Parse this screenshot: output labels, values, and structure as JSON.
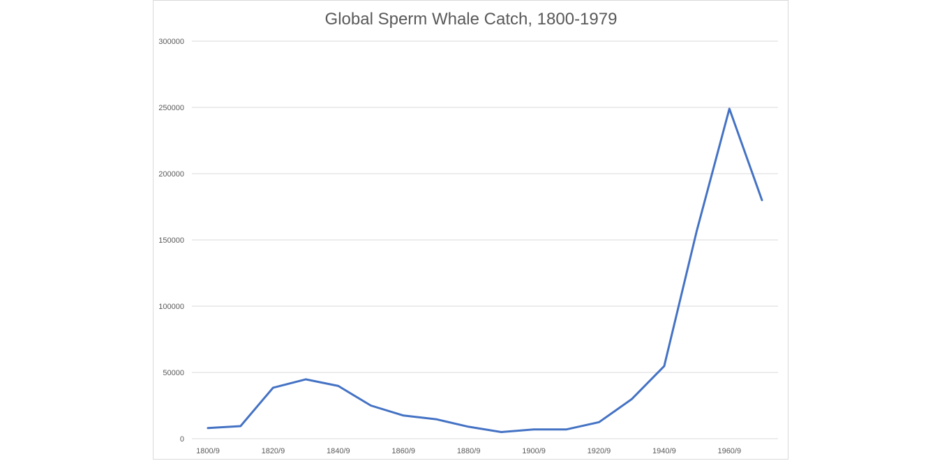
{
  "chart_data": {
    "type": "line",
    "title": "Global Sperm Whale Catch, 1800-1979",
    "xlabel": "",
    "ylabel": "",
    "x": [
      "1800/9",
      "1810/9",
      "1820/9",
      "1830/9",
      "1840/9",
      "1850/9",
      "1860/9",
      "1870/9",
      "1880/9",
      "1890/9",
      "1900/9",
      "1910/9",
      "1920/9",
      "1930/9",
      "1940/9",
      "1950/9",
      "1960/9",
      "1970/9"
    ],
    "x_tick_labels": [
      "1800/9",
      "1820/9",
      "1840/9",
      "1860/9",
      "1880/9",
      "1900/9",
      "1920/9",
      "1940/9",
      "1960/9"
    ],
    "y_ticks": [
      0,
      50000,
      100000,
      150000,
      200000,
      250000,
      300000
    ],
    "ylim": [
      0,
      300000
    ],
    "grid": true,
    "legend": "none",
    "series": [
      {
        "values": [
          8000,
          9500,
          38500,
          44800,
          39800,
          25000,
          17500,
          14700,
          9000,
          5000,
          7000,
          7000,
          12500,
          29800,
          54800,
          157000,
          249000,
          180000
        ],
        "color": "#4472c4"
      }
    ]
  }
}
